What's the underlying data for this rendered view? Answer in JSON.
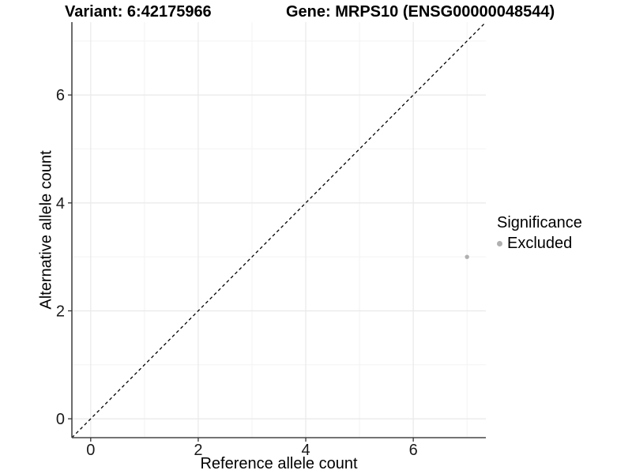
{
  "titles": {
    "variant": "Variant: 6:42175966",
    "gene": "Gene: MRPS10 (ENSG00000048544)"
  },
  "chart_data": {
    "type": "scatter",
    "xlabel": "Reference allele count",
    "ylabel": "Alternative allele count",
    "xlim": [
      -0.35,
      7.35
    ],
    "ylim": [
      -0.35,
      7.35
    ],
    "x_ticks": [
      0,
      2,
      4,
      6
    ],
    "y_ticks": [
      0,
      2,
      4,
      6
    ],
    "x_minor_ticks": [
      1,
      3,
      5,
      7
    ],
    "y_minor_ticks": [
      1,
      3,
      5,
      7
    ],
    "grid": true,
    "identity_line": {
      "type": "dashed",
      "color": "#000000",
      "equation": "y = x"
    },
    "series": [
      {
        "name": "Excluded",
        "color": "#b0b0b0",
        "points": [
          {
            "x": 7,
            "y": 3
          }
        ]
      }
    ],
    "legend": {
      "title": "Significance",
      "position": "right",
      "items": [
        {
          "label": "Excluded",
          "color": "#b0b0b0"
        }
      ]
    }
  },
  "colors": {
    "background": "#ffffff",
    "grid_major": "#e9e9e9",
    "grid_minor": "#f3f3f3",
    "axis_line": "#474747",
    "tick_mark": "#333333",
    "tick_text": "#1a1a1a"
  }
}
